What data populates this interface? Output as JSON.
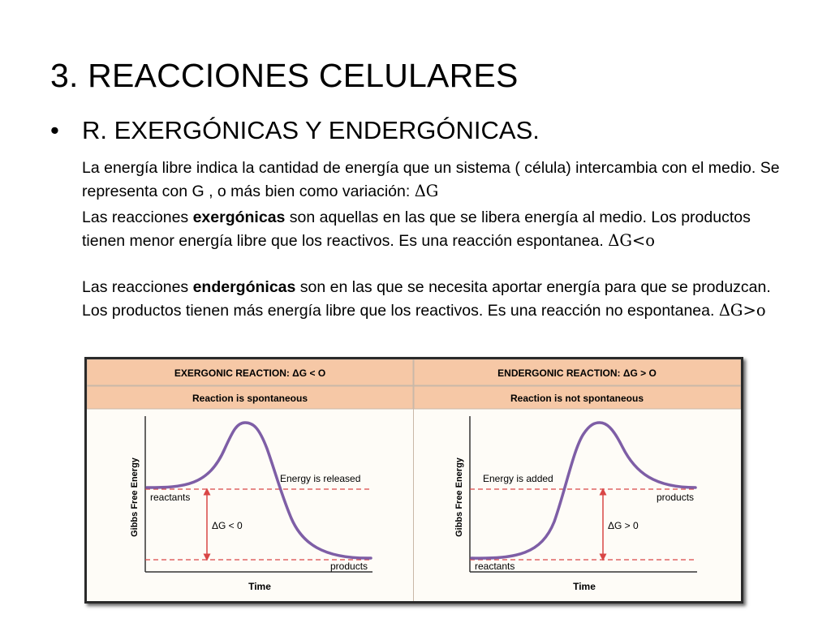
{
  "slide": {
    "title": "3. REACCIONES CELULARES",
    "bullet": "R. EXERGÓNICAS Y ENDERGÓNICAS.",
    "p1_text": "La energía libre indica la cantidad de energía que un sistema ( célula) intercambia con el medio. Se representa con G , o más bien como variación: ",
    "p1_symbol": "ΔG",
    "p2_before": "Las reacciones ",
    "p2_bold": "exergónicas",
    "p2_after": " son aquellas en las que se libera energía al medio. Los productos tienen menor energía libre que los reactivos. Es una reacción espontanea. ",
    "p2_symbol": "ΔG<o",
    "p3_before": "Las reacciones ",
    "p3_bold": "endergónicas",
    "p3_after": " son en  las que se necesita aportar energía para que se produzcan. Los productos tienen más energía libre que los reactivos. Es una reacción no espontanea. ",
    "p3_symbol": "ΔG>o"
  },
  "figure": {
    "colors": {
      "header": "#f6c8a6",
      "border": "#c9b8a8",
      "curve": "#7e5ea6",
      "dash": "#d94646",
      "arrow": "#d94646",
      "panel": "#fefcf7"
    },
    "left": {
      "header": "EXERGONIC REACTION: ΔG < O",
      "subheader": "Reaction is spontaneous",
      "ylabel": "Gibbs Free Energy",
      "xlabel": "Time",
      "energy_label": "Energy is released",
      "start_label": "reactants",
      "end_label": "products",
      "delta_label": "ΔG < 0"
    },
    "right": {
      "header": "ENDERGONIC REACTION: ΔG > O",
      "subheader": "Reaction is not spontaneous",
      "ylabel": "Gibbs Free Energy",
      "xlabel": "Time",
      "energy_label": "Energy is added",
      "start_label": "reactants",
      "end_label": "products",
      "delta_label": "ΔG > 0"
    }
  }
}
